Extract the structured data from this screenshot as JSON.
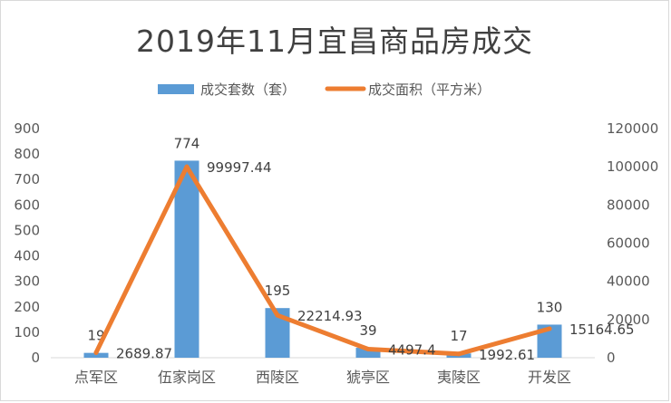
{
  "chart_data": {
    "type": "bar",
    "title": "2019年11月宜昌商品房成交",
    "categories": [
      "点军区",
      "伍家岗区",
      "西陵区",
      "猇亭区",
      "夷陵区",
      "开发区"
    ],
    "series": [
      {
        "name": "成交套数（套）",
        "type": "bar",
        "axis": "left",
        "color": "#5b9bd5",
        "values": [
          19,
          774,
          195,
          39,
          17,
          130
        ],
        "labels": [
          "19",
          "774",
          "195",
          "39",
          "17",
          "130"
        ]
      },
      {
        "name": "成交面积（平方米）",
        "type": "line",
        "axis": "right",
        "color": "#ed7d31",
        "values": [
          2689.87,
          99997.44,
          22214.93,
          4497.4,
          1992.61,
          15164.65
        ],
        "labels": [
          "2689.87",
          "99997.44",
          "22214.93",
          "4497.4",
          "1992.61",
          "15164.65"
        ]
      }
    ],
    "y_left": {
      "min": 0,
      "max": 900,
      "step": 100
    },
    "y_right": {
      "min": 0,
      "max": 120000,
      "step": 20000
    },
    "legend_position": "top",
    "grid": false
  }
}
